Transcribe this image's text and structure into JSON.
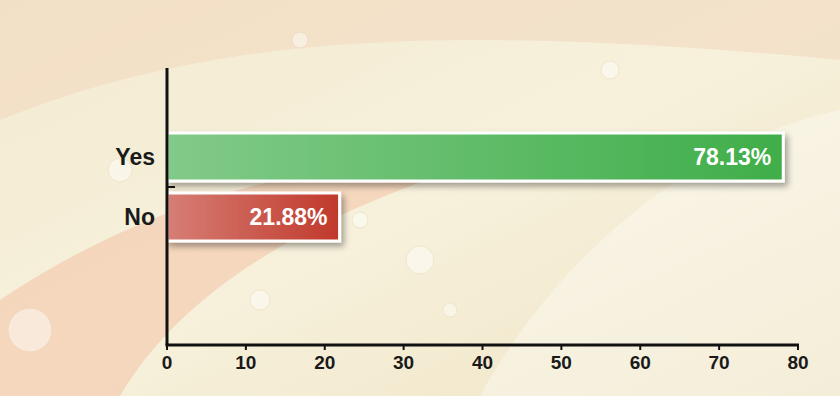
{
  "chart_data": {
    "type": "bar",
    "orientation": "horizontal",
    "categories": [
      "Yes",
      "No"
    ],
    "values": [
      78.13,
      21.88
    ],
    "value_labels": [
      "78.13%",
      "21.88%"
    ],
    "colors": [
      "#3fae49",
      "#c0392b"
    ],
    "xlim": [
      0,
      80
    ],
    "xticks": [
      0,
      10,
      20,
      30,
      40,
      50,
      60,
      70,
      80
    ],
    "data_labels": true,
    "grid": false
  }
}
